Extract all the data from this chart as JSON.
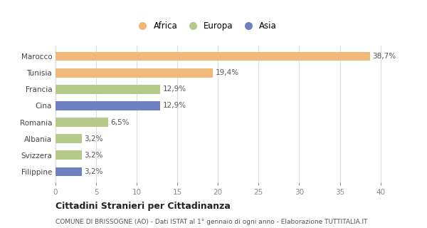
{
  "categories": [
    "Filippine",
    "Svizzera",
    "Albania",
    "Romania",
    "Cina",
    "Francia",
    "Tunisia",
    "Marocco"
  ],
  "values": [
    3.2,
    3.2,
    3.2,
    6.5,
    12.9,
    12.9,
    19.4,
    38.7
  ],
  "labels": [
    "3,2%",
    "3,2%",
    "3,2%",
    "6,5%",
    "12,9%",
    "12,9%",
    "19,4%",
    "38,7%"
  ],
  "colors": [
    "#6e80c0",
    "#b5c98a",
    "#b5c98a",
    "#b5c98a",
    "#6e80c0",
    "#b5c98a",
    "#f0b97a",
    "#f0b97a"
  ],
  "legend": [
    {
      "label": "Africa",
      "color": "#f0b97a"
    },
    {
      "label": "Europa",
      "color": "#b5c98a"
    },
    {
      "label": "Asia",
      "color": "#6e80c0"
    }
  ],
  "xlim": [
    0,
    41
  ],
  "xticks": [
    0,
    5,
    10,
    15,
    20,
    25,
    30,
    35,
    40
  ],
  "title": "Cittadini Stranieri per Cittadinanza",
  "subtitle": "COMUNE DI BRISSOGNE (AO) - Dati ISTAT al 1° gennaio di ogni anno - Elaborazione TUTTITALIA.IT",
  "bg_color": "#ffffff",
  "bar_height": 0.55,
  "label_fontsize": 7.5,
  "tick_fontsize": 7.5,
  "legend_fontsize": 8.5
}
